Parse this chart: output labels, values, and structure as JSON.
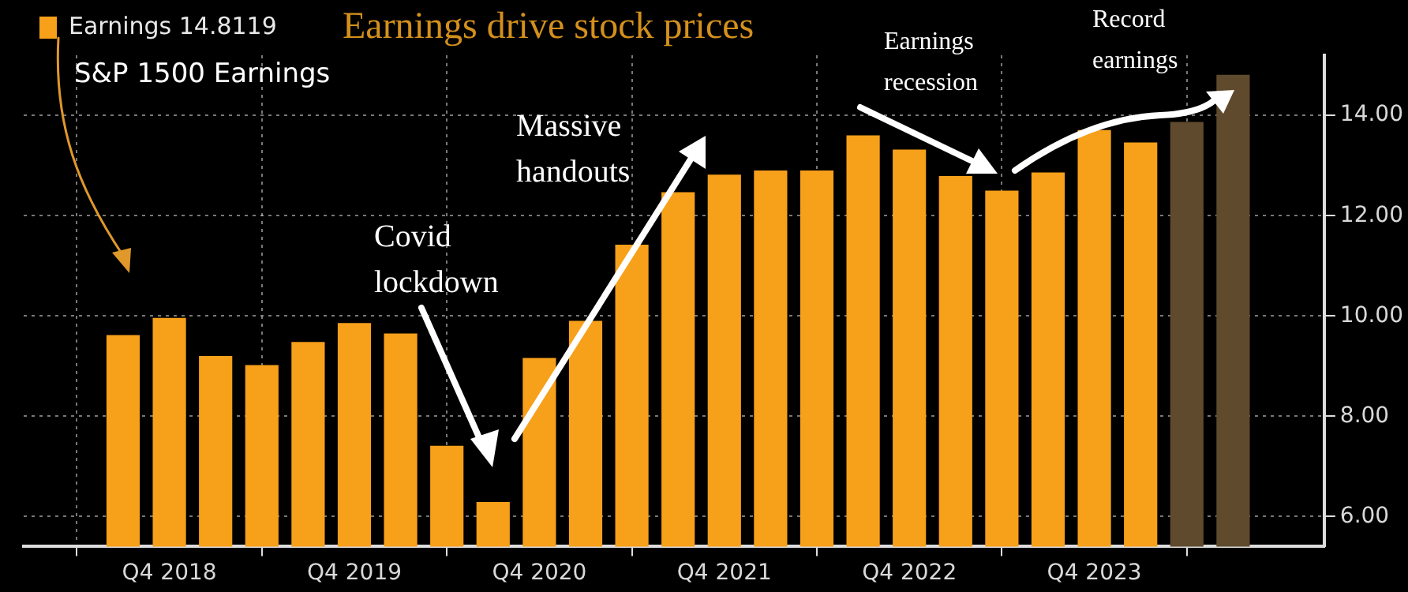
{
  "chart_data": {
    "type": "bar",
    "title": "Earnings drive stock prices",
    "categories": [
      null,
      "Q4 2018",
      null,
      null,
      null,
      "Q4 2019",
      null,
      null,
      null,
      "Q4 2020",
      null,
      null,
      null,
      "Q4 2021",
      null,
      null,
      null,
      "Q4 2022",
      null,
      null,
      null,
      "Q4 2023",
      null,
      null,
      null
    ],
    "series": [
      {
        "name": "Earnings 14.8119",
        "color": "#f7a01a",
        "colors": [
          "#f7a01a",
          "#f7a01a",
          "#f7a01a",
          "#f7a01a",
          "#f7a01a",
          "#f7a01a",
          "#f7a01a",
          "#f7a01a",
          "#f7a01a",
          "#f7a01a",
          "#f7a01a",
          "#f7a01a",
          "#f7a01a",
          "#f7a01a",
          "#f7a01a",
          "#f7a01a",
          "#f7a01a",
          "#f7a01a",
          "#f7a01a",
          "#f7a01a",
          "#f7a01a",
          "#f7a01a",
          "#f7a01a",
          "#5f4a2d",
          "#5f4a2d"
        ],
        "values": [
          9.62,
          9.96,
          9.2,
          9.02,
          9.48,
          9.86,
          9.65,
          7.41,
          6.29,
          9.16,
          9.9,
          11.42,
          12.47,
          12.82,
          12.9,
          12.9,
          13.6,
          13.32,
          12.79,
          12.5,
          12.86,
          13.71,
          13.46,
          13.87,
          14.81
        ]
      }
    ],
    "ylim": [
      5.4,
      15.2
    ],
    "yticks": [
      {
        "value": 6,
        "label": "6.00"
      },
      {
        "value": 8,
        "label": "8.00"
      },
      {
        "value": 10,
        "label": "10.00"
      },
      {
        "value": 12,
        "label": "12.00"
      },
      {
        "value": 14,
        "label": "14.00"
      }
    ],
    "grid": true,
    "legend": "top left",
    "annotations": [
      "S&P 1500 Earnings",
      "Covid lockdown",
      "Massive handouts",
      "Earnings recession",
      "Record earnings"
    ]
  }
}
